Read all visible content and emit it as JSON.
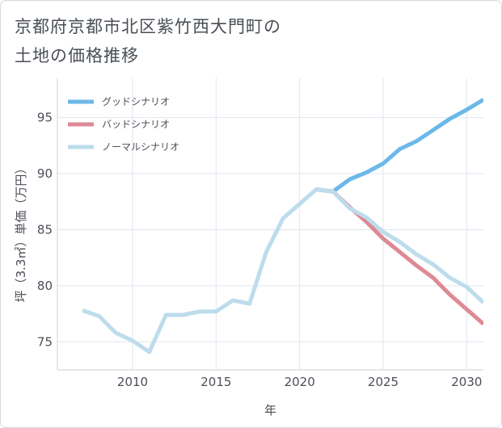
{
  "title_line1": "京都府京都市北区紫竹西大門町の",
  "title_line2": "土地の価格推移",
  "chart_data": {
    "type": "line",
    "title": "京都府京都市北区紫竹西大門町の土地の価格推移",
    "xlabel": "年",
    "ylabel": "坪（3.3㎡）単価（万円）",
    "xlim": [
      2005.5,
      2031
    ],
    "ylim": [
      72.5,
      98.5
    ],
    "xticks": [
      2010,
      2015,
      2020,
      2025,
      2030
    ],
    "yticks": [
      75,
      80,
      85,
      90,
      95
    ],
    "grid": true,
    "legend_position": "top-left",
    "series": [
      {
        "name": "グッドシナリオ",
        "color": "#6cb8ea",
        "x": [
          2021,
          2022,
          2023,
          2024,
          2025,
          2026,
          2027,
          2028,
          2029,
          2030,
          2031
        ],
        "y": [
          88.6,
          88.4,
          89.5,
          90.1,
          90.9,
          92.2,
          92.9,
          93.9,
          94.9,
          95.7,
          96.6
        ]
      },
      {
        "name": "バッドシナリオ",
        "color": "#de8a94",
        "x": [
          2021,
          2022,
          2023,
          2024,
          2025,
          2026,
          2027,
          2028,
          2029,
          2030,
          2031
        ],
        "y": [
          88.6,
          88.4,
          87.0,
          85.7,
          84.2,
          83.0,
          81.8,
          80.7,
          79.2,
          77.9,
          76.6
        ]
      },
      {
        "name": "ノーマルシナリオ",
        "color": "#bddcec",
        "x": [
          2007,
          2008,
          2009,
          2010,
          2011,
          2012,
          2013,
          2014,
          2015,
          2016,
          2017,
          2018,
          2019,
          2020,
          2021,
          2022,
          2023,
          2024,
          2025,
          2026,
          2027,
          2028,
          2029,
          2030,
          2031
        ],
        "y": [
          77.8,
          77.3,
          75.8,
          75.1,
          74.1,
          77.4,
          77.4,
          77.7,
          77.7,
          78.7,
          78.4,
          83.0,
          86.0,
          87.3,
          88.6,
          88.4,
          86.9,
          86.1,
          84.8,
          83.9,
          82.8,
          81.9,
          80.7,
          79.9,
          78.5
        ]
      }
    ]
  }
}
